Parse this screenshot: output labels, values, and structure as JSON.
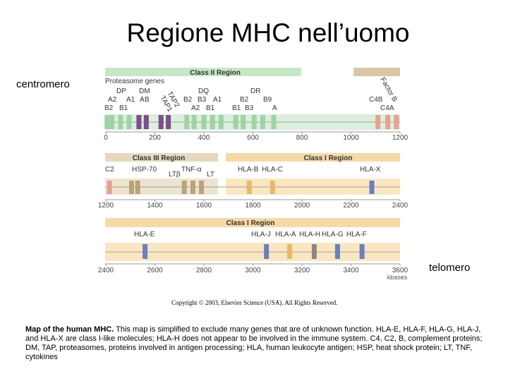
{
  "slide": {
    "title": "Regione MHC nell’uomo",
    "left_label": "centromero",
    "right_label": "telomero"
  },
  "map": {
    "band1": {
      "region_labels": [
        "Class II Region"
      ],
      "gene_labels": [
        "Proteasome genes",
        "DP",
        "DM",
        "A2",
        "A1",
        "A",
        "B",
        "B2",
        "B1",
        "TAP2",
        "TAP1",
        "DQ",
        "B2",
        "B3",
        "A2",
        "B1",
        "A1",
        "DR",
        "B2",
        "B9",
        "B1",
        "B3",
        "A",
        "Factor B",
        "C4B",
        "C4A"
      ],
      "ticks": [
        "0",
        "200",
        "400",
        "600",
        "800",
        "1000",
        "1200"
      ],
      "genes": [
        {
          "pos": 5,
          "color": "#9fd3a5"
        },
        {
          "pos": 25,
          "color": "#9fd3a5"
        },
        {
          "pos": 60,
          "color": "#9fd3a5"
        },
        {
          "pos": 95,
          "color": "#9fd3a5"
        },
        {
          "pos": 135,
          "color": "#7a4f8a"
        },
        {
          "pos": 165,
          "color": "#7a4f8a"
        },
        {
          "pos": 225,
          "color": "#7a4f8a"
        },
        {
          "pos": 255,
          "color": "#7a4f8a"
        },
        {
          "pos": 330,
          "color": "#9fd3a5"
        },
        {
          "pos": 360,
          "color": "#9fd3a5"
        },
        {
          "pos": 400,
          "color": "#9fd3a5"
        },
        {
          "pos": 435,
          "color": "#9fd3a5"
        },
        {
          "pos": 470,
          "color": "#9fd3a5"
        },
        {
          "pos": 530,
          "color": "#9fd3a5"
        },
        {
          "pos": 560,
          "color": "#9fd3a5"
        },
        {
          "pos": 605,
          "color": "#9fd3a5"
        },
        {
          "pos": 640,
          "color": "#9fd3a5"
        },
        {
          "pos": 685,
          "color": "#9fd3a5"
        },
        {
          "pos": 1110,
          "color": "#e8a090"
        },
        {
          "pos": 1150,
          "color": "#e8a090"
        },
        {
          "pos": 1185,
          "color": "#e8a090"
        }
      ]
    },
    "band2": {
      "region_labels": [
        "Class III Region",
        "Class I Region"
      ],
      "gene_labels": [
        "C2",
        "HSP-70",
        "LTβ",
        "TNF-α",
        "LT",
        "HLA-B",
        "HLA-C",
        "HLA-X"
      ],
      "ticks": [
        "1200",
        "1400",
        "1600",
        "1800",
        "2000",
        "2200",
        "2400"
      ],
      "genes": [
        {
          "pos": 1215,
          "color": "#e8a090"
        },
        {
          "pos": 1305,
          "color": "#b8a37a"
        },
        {
          "pos": 1330,
          "color": "#b8a37a"
        },
        {
          "pos": 1520,
          "color": "#b8a37a"
        },
        {
          "pos": 1555,
          "color": "#b8a37a"
        },
        {
          "pos": 1590,
          "color": "#b8a37a"
        },
        {
          "pos": 1785,
          "color": "#e8b868"
        },
        {
          "pos": 1880,
          "color": "#e8b868"
        },
        {
          "pos": 2285,
          "color": "#6a7fc0"
        }
      ]
    },
    "band3": {
      "region_labels": [
        "Class I Region"
      ],
      "gene_labels": [
        "HLA-E",
        "HLA-J",
        "HLA-A",
        "HLA-H",
        "HLA-G",
        "HLA-F"
      ],
      "ticks": [
        "2400",
        "2600",
        "2800",
        "3000",
        "3200",
        "3400",
        "3600"
      ],
      "axis_unit": "kbases",
      "genes": [
        {
          "pos": 2560,
          "color": "#6a7fc0"
        },
        {
          "pos": 3055,
          "color": "#6a7fc0"
        },
        {
          "pos": 3150,
          "color": "#e8b868"
        },
        {
          "pos": 3250,
          "color": "#888888"
        },
        {
          "pos": 3345,
          "color": "#6a7fc0"
        },
        {
          "pos": 3445,
          "color": "#6a7fc0"
        }
      ]
    },
    "copyright": "Copyright © 2003, Elsevier Science (USA). All Rights Reserved."
  },
  "caption": {
    "bold": "Map of the human MHC.",
    "text": " This map is simplified to exclude many genes that are of unknown function. HLA-E, HLA-F, HLA-G, HLA-J, and HLA-X are class I-like molecules; HLA-H does not appear to be involved in the immune system. C4, C2, B, complement proteins; DM, TAP, proteasomes, proteins involved in antigen processing; HLA, human leukocyte antigen; HSP, heat shock protein; LT, TNF, cytokines"
  }
}
